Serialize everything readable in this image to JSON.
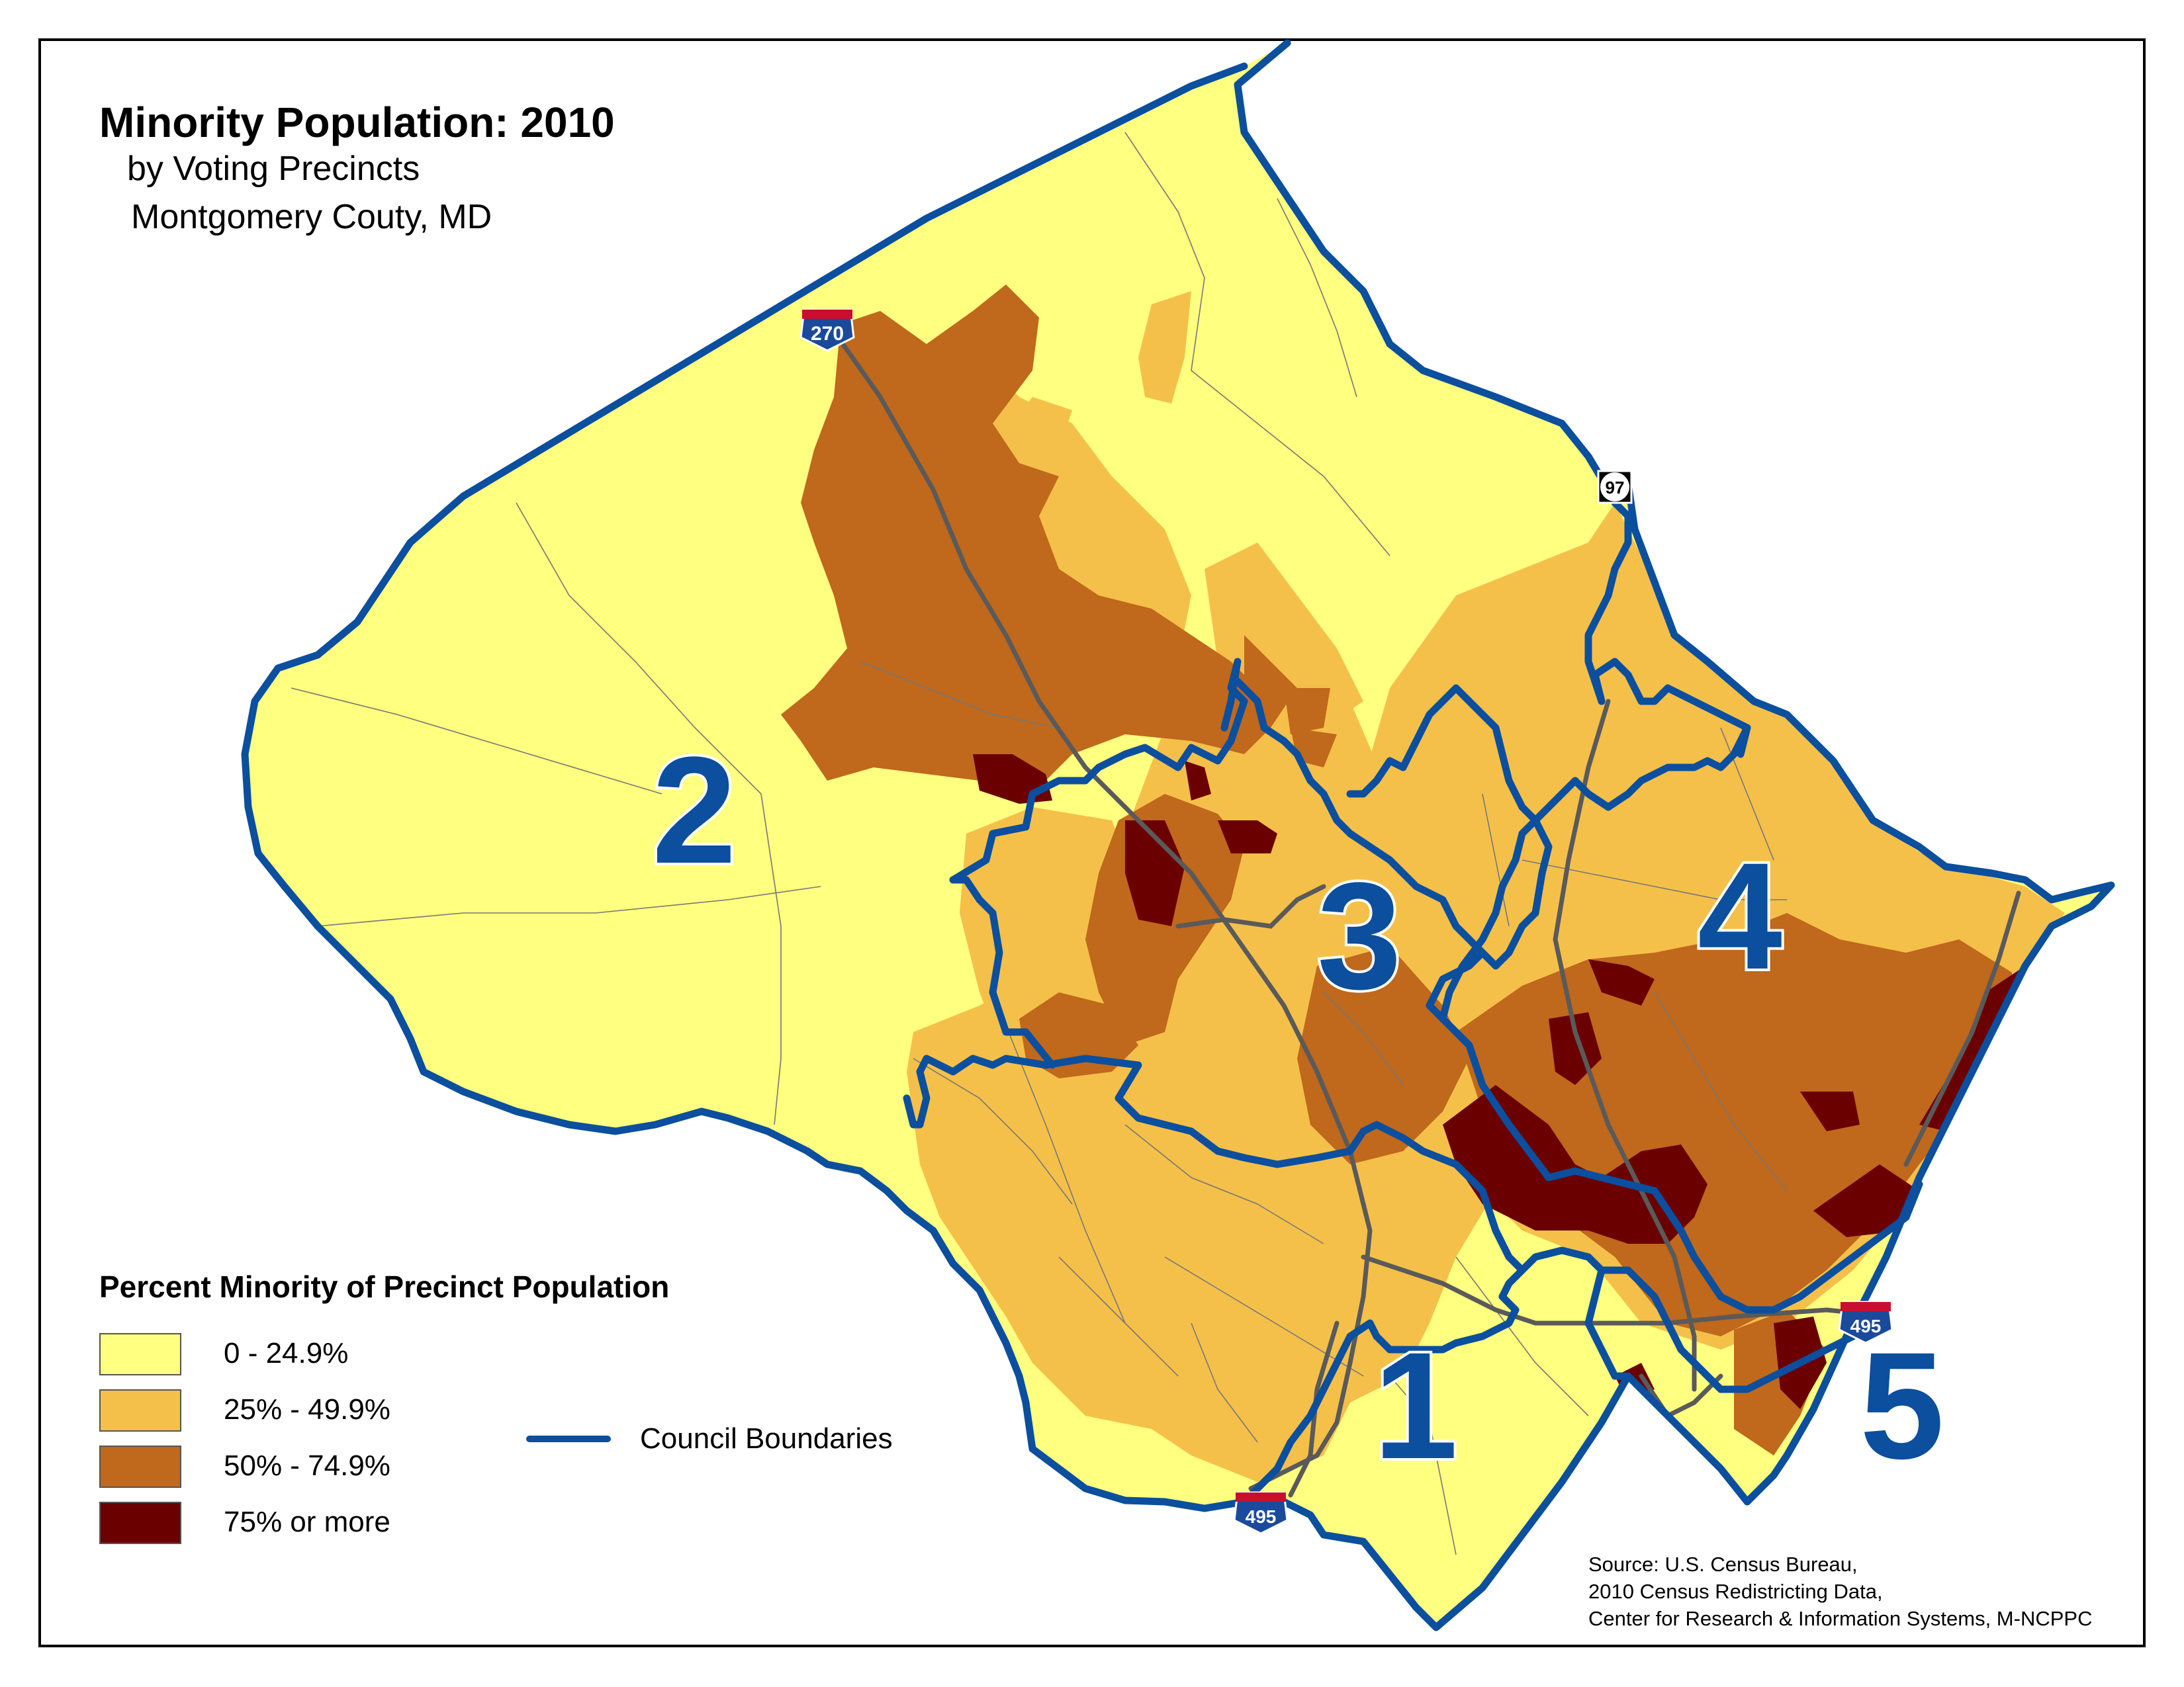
{
  "map": {
    "title": "Minority Population: 2010",
    "subtitle_line1": "by Voting Precincts",
    "subtitle_line2": "Montgomery Couty, MD"
  },
  "legend": {
    "title": "Percent Minority of Precinct Population",
    "classes": [
      {
        "label": "0 - 24.9%",
        "color": "#ffff80"
      },
      {
        "label": "25% - 49.9%",
        "color": "#f5c04a"
      },
      {
        "label": "50% - 74.9%",
        "color": "#c0681c"
      },
      {
        "label": "75% or more",
        "color": "#6b0000"
      }
    ],
    "boundary_label": "Council Boundaries",
    "boundary_color": "#0b4f9e"
  },
  "districts": [
    "1",
    "2",
    "3",
    "4",
    "5"
  ],
  "highways": [
    {
      "name": "270",
      "icon": "interstate-shield-icon"
    },
    {
      "name": "97",
      "icon": "state-route-shield-icon"
    },
    {
      "name": "495",
      "icon": "interstate-shield-icon"
    },
    {
      "name": "495",
      "icon": "interstate-shield-icon"
    }
  ],
  "source": {
    "line1": "Source: U.S. Census Bureau,",
    "line2": "2010 Census Redistricting Data,",
    "line3": "Center for Research & Information Systems, M-NCPPC"
  }
}
